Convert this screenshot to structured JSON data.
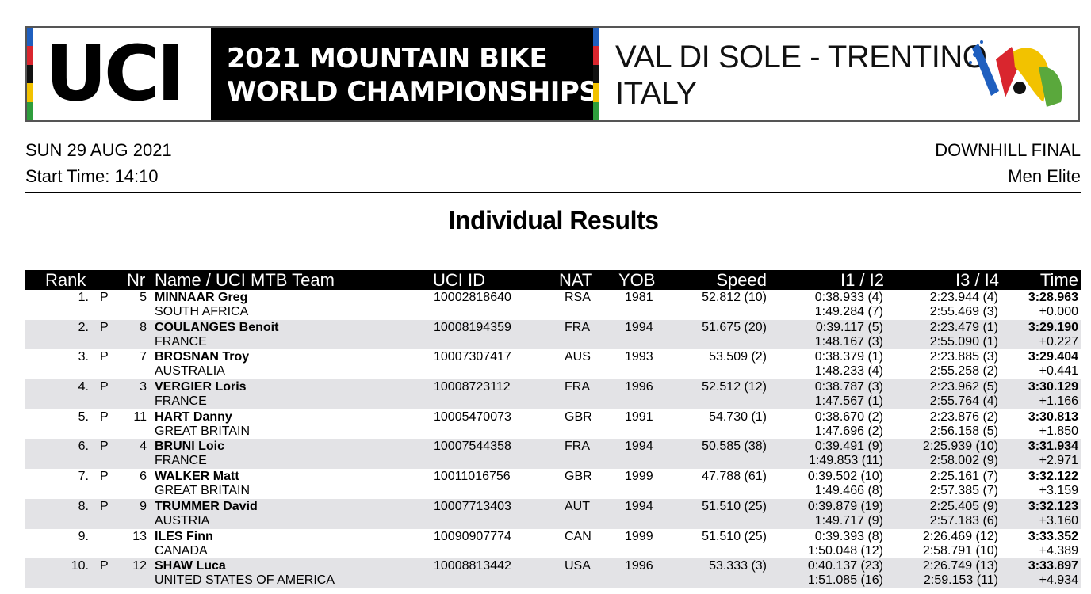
{
  "banner": {
    "logo_text": "UCI",
    "title_line1": "2021 MOUNTAIN BIKE",
    "title_line2": "WORLD CHAMPIONSHIPS",
    "venue_line1": "VAL DI SOLE - TRENTINO",
    "venue_line2": "ITALY",
    "rainbow_colors": [
      "#1f5fbf",
      "#d9262e",
      "#111111",
      "#f2c200",
      "#2e9d3c"
    ]
  },
  "meta": {
    "date": "SUN 29 AUG 2021",
    "start_time": "Start Time: 14:10",
    "event": "DOWNHILL FINAL",
    "category": "Men Elite"
  },
  "page_title": "Individual Results",
  "table": {
    "headers": {
      "rank": "Rank",
      "nr": "Nr",
      "name": "Name / UCI MTB Team",
      "uci_id": "UCI ID",
      "nat": "NAT",
      "yob": "YOB",
      "speed": "Speed",
      "i1i2": "I1 / I2",
      "i3i4": "I3 / I4",
      "time": "Time"
    },
    "rows": [
      {
        "rank": "1.",
        "flag": "P",
        "nr": "5",
        "name": "MINNAAR Greg",
        "team": "SOUTH AFRICA",
        "uci_id": "10002818640",
        "nat": "RSA",
        "yob": "1981",
        "speed": "52.812 (10)",
        "i1": "0:38.933 (4)",
        "i2": "1:49.284 (7)",
        "i3": "2:23.944 (4)",
        "i4": "2:55.469 (3)",
        "time": "3:28.963",
        "gap": "+0.000"
      },
      {
        "rank": "2.",
        "flag": "P",
        "nr": "8",
        "name": "COULANGES Benoit",
        "team": "FRANCE",
        "uci_id": "10008194359",
        "nat": "FRA",
        "yob": "1994",
        "speed": "51.675 (20)",
        "i1": "0:39.117 (5)",
        "i2": "1:48.167 (3)",
        "i3": "2:23.479 (1)",
        "i4": "2:55.090 (1)",
        "time": "3:29.190",
        "gap": "+0.227"
      },
      {
        "rank": "3.",
        "flag": "P",
        "nr": "7",
        "name": "BROSNAN Troy",
        "team": "AUSTRALIA",
        "uci_id": "10007307417",
        "nat": "AUS",
        "yob": "1993",
        "speed": "53.509 (2)",
        "i1": "0:38.379 (1)",
        "i2": "1:48.233 (4)",
        "i3": "2:23.885 (3)",
        "i4": "2:55.258 (2)",
        "time": "3:29.404",
        "gap": "+0.441"
      },
      {
        "rank": "4.",
        "flag": "P",
        "nr": "3",
        "name": "VERGIER Loris",
        "team": "FRANCE",
        "uci_id": "10008723112",
        "nat": "FRA",
        "yob": "1996",
        "speed": "52.512 (12)",
        "i1": "0:38.787 (3)",
        "i2": "1:47.567 (1)",
        "i3": "2:23.962 (5)",
        "i4": "2:55.764 (4)",
        "time": "3:30.129",
        "gap": "+1.166"
      },
      {
        "rank": "5.",
        "flag": "P",
        "nr": "11",
        "name": "HART Danny",
        "team": "GREAT BRITAIN",
        "uci_id": "10005470073",
        "nat": "GBR",
        "yob": "1991",
        "speed": "54.730 (1)",
        "i1": "0:38.670 (2)",
        "i2": "1:47.696 (2)",
        "i3": "2:23.876 (2)",
        "i4": "2:56.158 (5)",
        "time": "3:30.813",
        "gap": "+1.850"
      },
      {
        "rank": "6.",
        "flag": "P",
        "nr": "4",
        "name": "BRUNI Loic",
        "team": "FRANCE",
        "uci_id": "10007544358",
        "nat": "FRA",
        "yob": "1994",
        "speed": "50.585 (38)",
        "i1": "0:39.491 (9)",
        "i2": "1:49.853 (11)",
        "i3": "2:25.939 (10)",
        "i4": "2:58.002 (9)",
        "time": "3:31.934",
        "gap": "+2.971"
      },
      {
        "rank": "7.",
        "flag": "P",
        "nr": "6",
        "name": "WALKER Matt",
        "team": "GREAT BRITAIN",
        "uci_id": "10011016756",
        "nat": "GBR",
        "yob": "1999",
        "speed": "47.788 (61)",
        "i1": "0:39.502 (10)",
        "i2": "1:49.466 (8)",
        "i3": "2:25.161 (7)",
        "i4": "2:57.385 (7)",
        "time": "3:32.122",
        "gap": "+3.159"
      },
      {
        "rank": "8.",
        "flag": "P",
        "nr": "9",
        "name": "TRUMMER David",
        "team": "AUSTRIA",
        "uci_id": "10007713403",
        "nat": "AUT",
        "yob": "1994",
        "speed": "51.510 (25)",
        "i1": "0:39.879 (19)",
        "i2": "1:49.717 (9)",
        "i3": "2:25.405 (9)",
        "i4": "2:57.183 (6)",
        "time": "3:32.123",
        "gap": "+3.160"
      },
      {
        "rank": "9.",
        "flag": "",
        "nr": "13",
        "name": "ILES Finn",
        "team": "CANADA",
        "uci_id": "10090907774",
        "nat": "CAN",
        "yob": "1999",
        "speed": "51.510 (25)",
        "i1": "0:39.393 (8)",
        "i2": "1:50.048 (12)",
        "i3": "2:26.469 (12)",
        "i4": "2:58.791 (10)",
        "time": "3:33.352",
        "gap": "+4.389"
      },
      {
        "rank": "10.",
        "flag": "P",
        "nr": "12",
        "name": "SHAW Luca",
        "team": "UNITED STATES OF AMERICA",
        "uci_id": "10008813442",
        "nat": "USA",
        "yob": "1996",
        "speed": "53.333 (3)",
        "i1": "0:40.137 (23)",
        "i2": "1:51.085 (16)",
        "i3": "2:26.749 (13)",
        "i4": "2:59.153 (11)",
        "time": "3:33.897",
        "gap": "+4.934"
      }
    ]
  }
}
